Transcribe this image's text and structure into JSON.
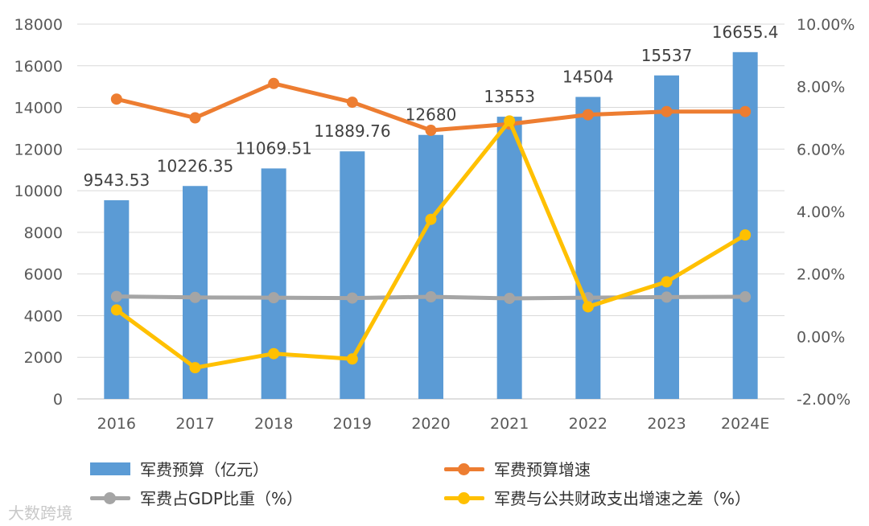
{
  "chart_data": {
    "type": "bar",
    "categories": [
      "2016",
      "2017",
      "2018",
      "2019",
      "2020",
      "2021",
      "2022",
      "2023",
      "2024E"
    ],
    "ylim": [
      0,
      18000
    ],
    "yticks": [
      "0",
      "2000",
      "4000",
      "6000",
      "8000",
      "10000",
      "12000",
      "14000",
      "16000",
      "18000"
    ],
    "y2lim": [
      -2.0,
      10.0
    ],
    "y2ticks": [
      "-2.00%",
      "0.00%",
      "2.00%",
      "4.00%",
      "6.00%",
      "8.00%",
      "10.00%"
    ],
    "series": [
      {
        "name": "军费预算（亿元）",
        "kind": "bar",
        "axis": "left",
        "color": "#5B9BD5",
        "values": [
          9543.53,
          10226.35,
          11069.51,
          11889.76,
          12680,
          13553,
          14504,
          15537,
          16655.4
        ],
        "labels": [
          "9543.53",
          "10226.35",
          "11069.51",
          "11889.76",
          "12680",
          "13553",
          "14504",
          "15537",
          "16655.4"
        ]
      },
      {
        "name": "军费预算增速",
        "kind": "line",
        "axis": "right",
        "color": "#ED7D31",
        "values": [
          7.6,
          7.0,
          8.1,
          7.5,
          6.6,
          6.8,
          7.1,
          7.2,
          7.2
        ]
      },
      {
        "name": "军费占GDP比重（%）",
        "kind": "line",
        "axis": "right",
        "color": "#A5A5A5",
        "values": [
          1.28,
          1.25,
          1.24,
          1.23,
          1.27,
          1.22,
          1.24,
          1.26,
          1.27
        ]
      },
      {
        "name": "军费与公共财政支出增速之差（%）",
        "kind": "line",
        "axis": "right",
        "color": "#FFC000",
        "values": [
          0.85,
          -1.0,
          -0.55,
          -0.72,
          3.75,
          6.9,
          0.95,
          1.75,
          3.25
        ]
      }
    ],
    "legend_position": "bottom",
    "grid": true
  },
  "watermark": "大数跨境"
}
